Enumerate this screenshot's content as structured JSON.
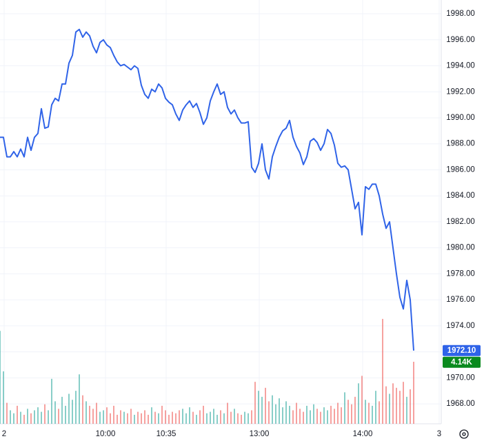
{
  "chart_data": {
    "type": "line",
    "x": [
      0,
      1,
      2,
      3,
      4,
      5,
      6,
      7,
      8,
      9,
      10,
      11,
      12,
      13,
      14,
      15,
      16,
      17,
      18,
      19,
      20,
      21,
      22,
      23,
      24,
      25,
      26,
      27,
      28,
      29,
      30,
      31,
      32,
      33,
      34,
      35,
      36,
      37,
      38,
      39,
      40,
      41,
      42,
      43,
      44,
      45,
      46,
      47,
      48,
      49,
      50,
      51,
      52,
      53,
      54,
      55,
      56,
      57,
      58,
      59,
      60,
      61,
      62,
      63,
      64,
      65,
      66,
      67,
      68,
      69,
      70,
      71,
      72,
      73,
      74,
      75,
      76,
      77,
      78,
      79,
      80,
      81,
      82,
      83,
      84,
      85,
      86,
      87,
      88,
      89,
      90,
      91,
      92,
      93,
      94,
      95,
      96,
      97,
      98,
      99,
      100,
      101,
      102,
      103,
      104,
      105,
      106,
      107,
      108,
      109,
      110,
      111,
      112,
      113,
      114,
      115,
      116,
      117,
      118,
      119,
      120
    ],
    "series": [
      {
        "color": "#2f63e8",
        "values": [
          1988.5,
          1988.5,
          1987,
          1987,
          1987.4,
          1987,
          1987.6,
          1987,
          1988.5,
          1987.5,
          1988.5,
          1988.8,
          1990.7,
          1989.2,
          1989.3,
          1991,
          1991.5,
          1991.3,
          1992.6,
          1992.6,
          1994.2,
          1994.8,
          1996.6,
          1996.8,
          1996.2,
          1996.6,
          1996.3,
          1995.5,
          1995,
          1995.8,
          1996,
          1995.6,
          1995.4,
          1994.8,
          1994.3,
          1994,
          1994.1,
          1993.9,
          1993.7,
          1994,
          1993.8,
          1992.5,
          1991.8,
          1991.5,
          1992.2,
          1992,
          1992.6,
          1992.3,
          1991.5,
          1991.2,
          1991,
          1990.3,
          1989.8,
          1990.6,
          1991,
          1991.3,
          1990.8,
          1991.1,
          1990.4,
          1989.5,
          1990,
          1991.3,
          1992,
          1992.6,
          1991.8,
          1992,
          1990.8,
          1990.3,
          1990.6,
          1990,
          1989.6,
          1989.6,
          1989.7,
          1986.2,
          1985.8,
          1986.5,
          1988,
          1986,
          1985.3,
          1987,
          1987.8,
          1988.5,
          1989,
          1989.2,
          1989.8,
          1988.5,
          1987.8,
          1987.3,
          1986.4,
          1987,
          1988.2,
          1988.4,
          1988.1,
          1987.5,
          1988,
          1989.1,
          1988.8,
          1987.9,
          1986.5,
          1986.2,
          1986.3,
          1986,
          1984.5,
          1983,
          1983.5,
          1981,
          1984.7,
          1984.5,
          1984.9,
          1984.9,
          1984,
          1982.6,
          1981.5,
          1982,
          1980,
          1978,
          1976.2,
          1975.3,
          1977.5,
          1976,
          1972.1
        ]
      },
      {
        "type": "bar",
        "axis": "y2",
        "up_color": "rgba(38,166,154,0.55)",
        "down_color": "rgba(239,83,80,0.55)",
        "values": [
          6200,
          3500,
          1400,
          900,
          700,
          1200,
          800,
          600,
          1000,
          700,
          900,
          1100,
          800,
          1300,
          900,
          3000,
          1500,
          1000,
          1800,
          1200,
          2000,
          1600,
          2200,
          3300,
          1900,
          1500,
          1200,
          1000,
          1400,
          800,
          900,
          1100,
          700,
          1200,
          600,
          900,
          800,
          700,
          1000,
          600,
          800,
          700,
          900,
          600,
          1100,
          800,
          700,
          1200,
          900,
          600,
          800,
          700,
          900,
          1000,
          700,
          1100,
          800,
          600,
          900,
          1200,
          700,
          800,
          1000,
          600,
          900,
          700,
          1400,
          800,
          1000,
          700,
          600,
          800,
          700,
          900,
          2800,
          2200,
          1800,
          2400,
          1500,
          1900,
          1300,
          1700,
          1100,
          1500,
          1200,
          900,
          1400,
          1000,
          800,
          1200,
          900,
          1300,
          1000,
          800,
          1100,
          900,
          1200,
          1000,
          1400,
          1100,
          2100,
          1600,
          1300,
          1800,
          2700,
          3200,
          1600,
          1400,
          1200,
          2200,
          1500,
          7000,
          2500,
          2000,
          2700,
          2400,
          2200,
          2800,
          1800,
          2300,
          4140
        ]
      }
    ],
    "xlim": [
      0,
      128
    ],
    "xticks": [
      {
        "value": 1.2,
        "label": "2"
      },
      {
        "value": 30.6,
        "label": "10:00"
      },
      {
        "value": 48.2,
        "label": "10:35"
      },
      {
        "value": 75.2,
        "label": "13:00"
      },
      {
        "value": 105.2,
        "label": "14:00"
      },
      {
        "value": 127.4,
        "label": "3"
      }
    ],
    "ylim": [
      1966.47,
      1999.06
    ],
    "yticks": [
      {
        "value": 1968,
        "label": "1968.00"
      },
      {
        "value": 1970,
        "label": "1970.00"
      },
      {
        "value": 1972,
        "label": "1972.00"
      },
      {
        "value": 1974,
        "label": "1974.00"
      },
      {
        "value": 1976,
        "label": "1976.00"
      },
      {
        "value": 1978,
        "label": "1978.00"
      },
      {
        "value": 1980,
        "label": "1980.00"
      },
      {
        "value": 1982,
        "label": "1982.00"
      },
      {
        "value": 1984,
        "label": "1984.00"
      },
      {
        "value": 1986,
        "label": "1986.00"
      },
      {
        "value": 1988,
        "label": "1988.00"
      },
      {
        "value": 1990,
        "label": "1990.00"
      },
      {
        "value": 1992,
        "label": "1992.00"
      },
      {
        "value": 1994,
        "label": "1994.00"
      },
      {
        "value": 1996,
        "label": "1996.00"
      },
      {
        "value": 1998,
        "label": "1998.00"
      }
    ],
    "y2lim": [
      0,
      28290
    ],
    "grid": true,
    "price_tag": {
      "value": 1972.1,
      "label": "1972.10",
      "color": "#2f63e8"
    },
    "volume_tag": {
      "value": 4140,
      "label": "4.14K",
      "color": "#0a8a1e"
    }
  }
}
